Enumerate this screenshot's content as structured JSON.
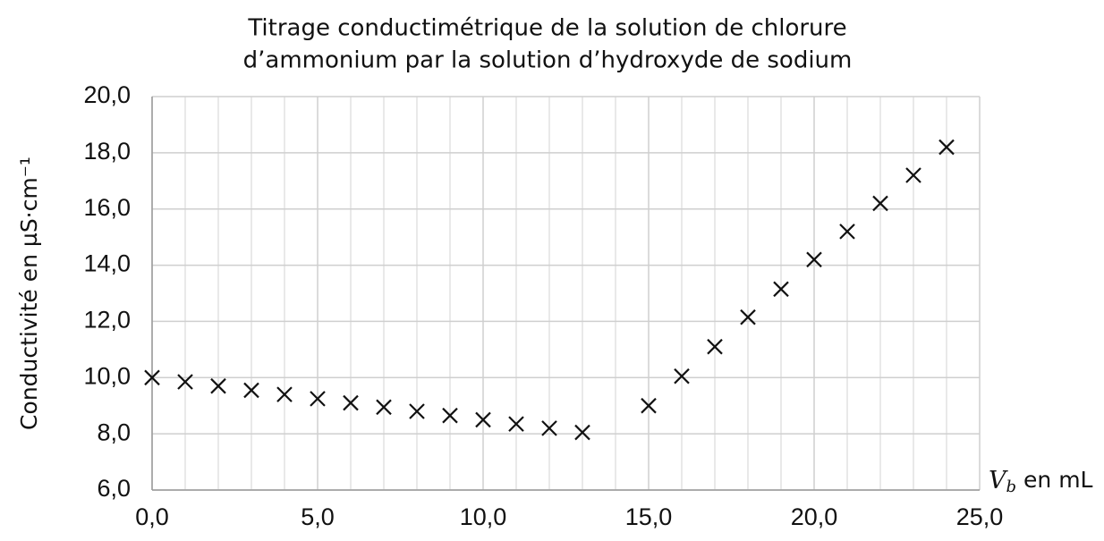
{
  "chart_data": {
    "type": "scatter",
    "title": [
      "Titrage conductimétrique de la solution de chlorure",
      "d’ammonium par la solution d’hydroxyde de sodium"
    ],
    "ylabel": "Conductivité en µS·cm⁻¹",
    "xlabel": {
      "symbol": "V",
      "subscript": "b",
      "unit": "en mL"
    },
    "marker": "x",
    "color": "#111111",
    "grid": true,
    "series": [
      {
        "x": [
          0,
          1,
          2,
          3,
          4,
          5,
          6,
          7,
          8,
          9,
          10,
          11,
          12,
          13,
          15,
          16,
          17,
          18,
          19,
          20,
          21,
          22,
          23,
          24
        ],
        "values": [
          10.0,
          9.85,
          9.7,
          9.55,
          9.4,
          9.25,
          9.1,
          8.95,
          8.8,
          8.65,
          8.5,
          8.35,
          8.2,
          8.05,
          9.0,
          10.05,
          11.1,
          12.15,
          13.15,
          14.2,
          15.2,
          16.2,
          17.2,
          18.2
        ]
      }
    ],
    "xlim": [
      0,
      25
    ],
    "xticks": [
      {
        "value": 0,
        "label": "0,0"
      },
      {
        "value": 5,
        "label": "5,0"
      },
      {
        "value": 10,
        "label": "10,0"
      },
      {
        "value": 15,
        "label": "15,0"
      },
      {
        "value": 20,
        "label": "20,0"
      },
      {
        "value": 25,
        "label": "25,0"
      }
    ],
    "xminorticks": [
      1,
      2,
      3,
      4,
      6,
      7,
      8,
      9,
      11,
      12,
      13,
      14,
      16,
      17,
      18,
      19,
      21,
      22,
      23,
      24
    ],
    "ylim": [
      6,
      20
    ],
    "yticks": [
      {
        "value": 6,
        "label": "6,0"
      },
      {
        "value": 8,
        "label": "8,0"
      },
      {
        "value": 10,
        "label": "10,0"
      },
      {
        "value": 12,
        "label": "12,0"
      },
      {
        "value": 14,
        "label": "14,0"
      },
      {
        "value": 16,
        "label": "16,0"
      },
      {
        "value": 18,
        "label": "18,0"
      },
      {
        "value": 20,
        "label": "20,0"
      }
    ]
  }
}
